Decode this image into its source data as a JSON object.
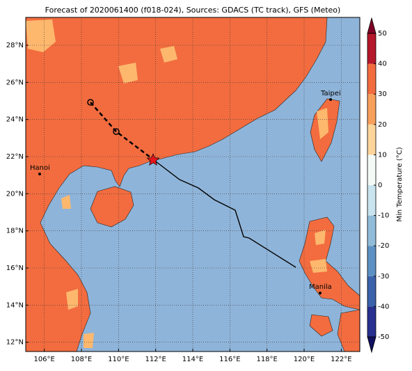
{
  "map": {
    "title": "Forecast of 2020061400 (f018-024), Sources: GDACS (TC track), GFS (Meteo)",
    "xlim": [
      105,
      123
    ],
    "ylim": [
      11.5,
      29.5
    ],
    "xticks": [
      {
        "value": 106,
        "label": "106°E"
      },
      {
        "value": 108,
        "label": "108°E"
      },
      {
        "value": 110,
        "label": "110°E"
      },
      {
        "value": 112,
        "label": "112°E"
      },
      {
        "value": 114,
        "label": "114°E"
      },
      {
        "value": 116,
        "label": "116°E"
      },
      {
        "value": 118,
        "label": "118°E"
      },
      {
        "value": 120,
        "label": "120°E"
      },
      {
        "value": 122,
        "label": "122°E"
      }
    ],
    "yticks": [
      {
        "value": 12,
        "label": "12°N"
      },
      {
        "value": 14,
        "label": "14°N"
      },
      {
        "value": 16,
        "label": "16°N"
      },
      {
        "value": 18,
        "label": "18°N"
      },
      {
        "value": 20,
        "label": "20°N"
      },
      {
        "value": 22,
        "label": "22°N"
      },
      {
        "value": 24,
        "label": "24°N"
      },
      {
        "value": 26,
        "label": "26°N"
      },
      {
        "value": 28,
        "label": "28°N"
      }
    ],
    "grid": true,
    "cities": [
      "Hanoi",
      "Taipei",
      "Manila"
    ],
    "colorbar": {
      "label": "Min Temperature (°C)",
      "lim": [
        -50,
        50
      ],
      "ticks": [
        -50,
        -40,
        -30,
        -20,
        -10,
        0,
        10,
        20,
        30,
        40,
        50
      ],
      "colors": [
        "#27308f",
        "#3b62ab",
        "#5d91c3",
        "#91bcd9",
        "#c9e4ee",
        "#f4fbf6",
        "#fdd49a",
        "#f7a05c",
        "#f26c3f",
        "#b5172b"
      ]
    }
  }
}
